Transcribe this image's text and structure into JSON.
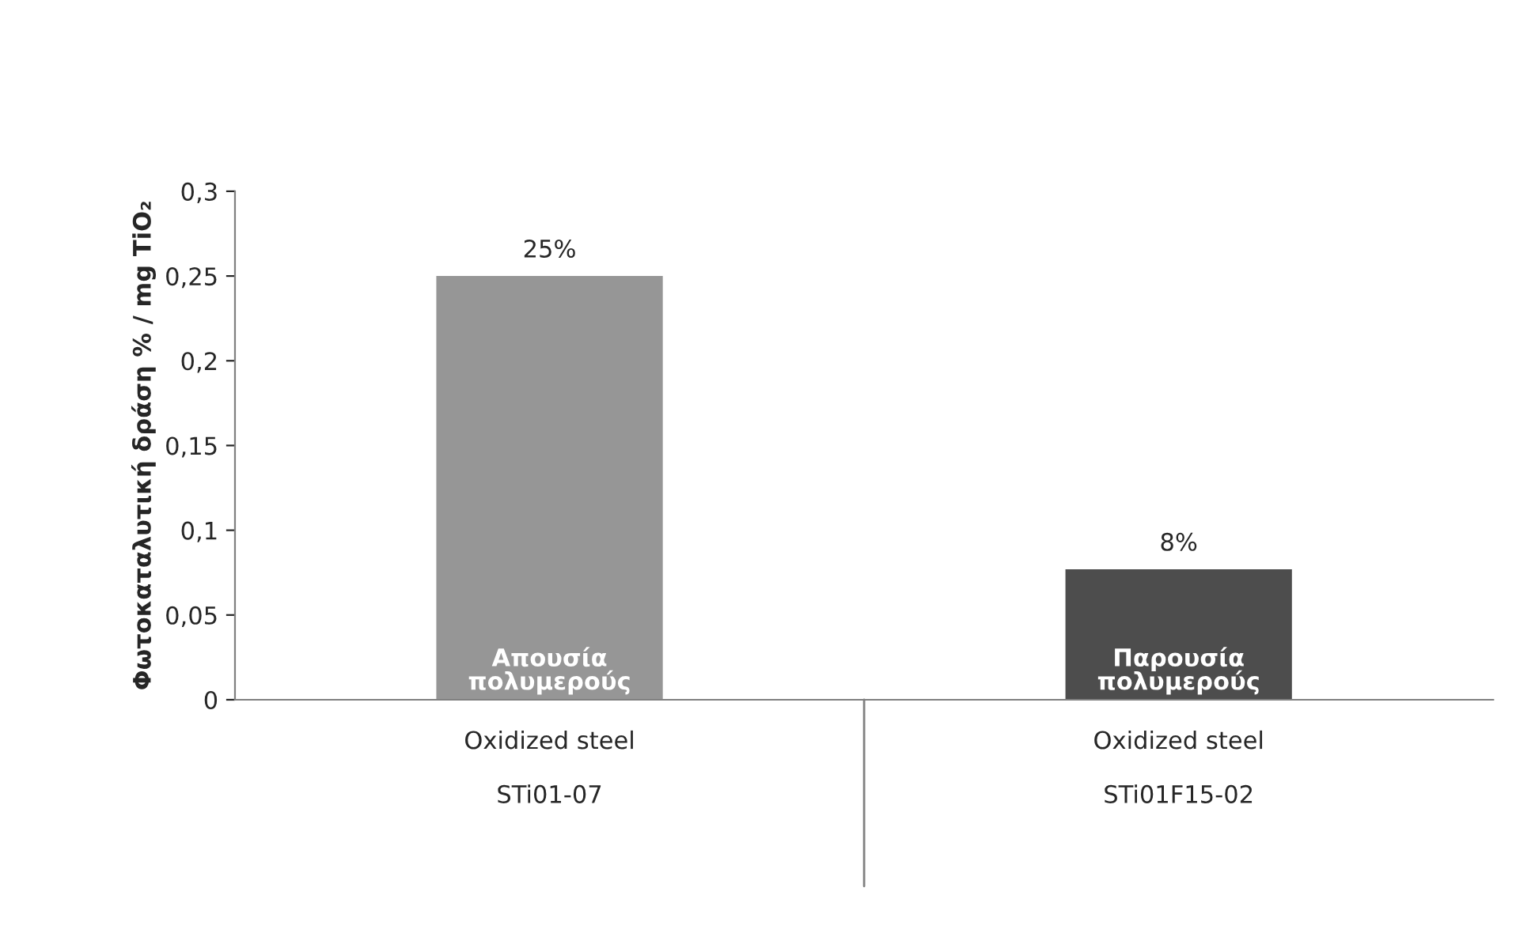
{
  "chart_data": {
    "type": "bar",
    "ylabel": "Φωτοκαταλυτική δράση % / mg TiO₂",
    "categories": [
      "Oxidized steel\n\nSTi01-07",
      "Oxidized steel\n\nSTi01F15-02"
    ],
    "series": [
      {
        "name": "Απουσία\nπολυμερούς",
        "color": "#969696",
        "values": [
          0.25,
          null
        ],
        "value_labels": [
          "25%",
          null
        ]
      },
      {
        "name": "Παρουσία\nπολυμερούς",
        "color": "#4d4d4d",
        "values": [
          null,
          0.077
        ],
        "value_labels": [
          null,
          "8%"
        ]
      }
    ],
    "ylim": [
      0,
      0.3
    ],
    "yticks": [
      {
        "value": 0,
        "label": "0"
      },
      {
        "value": 0.05,
        "label": "0,05"
      },
      {
        "value": 0.1,
        "label": "0,1"
      },
      {
        "value": 0.15,
        "label": "0,15"
      },
      {
        "value": 0.2,
        "label": "0,2"
      },
      {
        "value": 0.25,
        "label": "0,25"
      },
      {
        "value": 0.3,
        "label": "0,3"
      }
    ],
    "grid": false,
    "legend": false
  }
}
